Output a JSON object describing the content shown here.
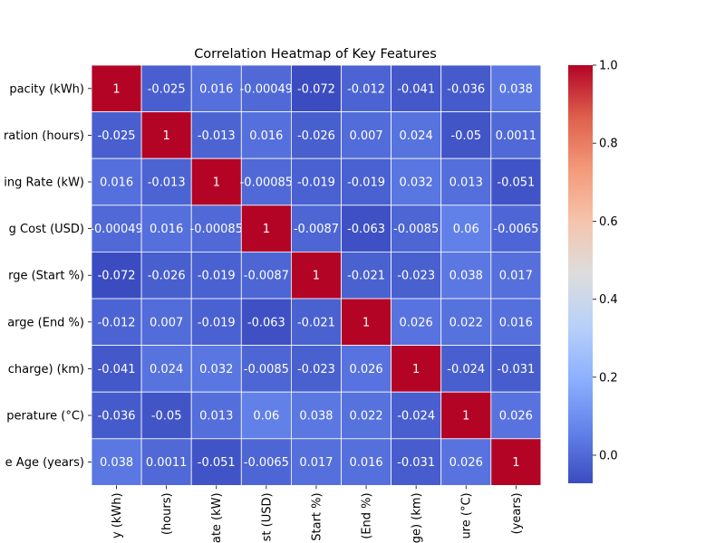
{
  "chart_data": {
    "type": "heatmap",
    "title": "Correlation Heatmap of Key Features",
    "row_labels": [
      "pacity (kWh)",
      "ration (hours)",
      "ing Rate (kW)",
      "g Cost (USD)",
      "rge (Start %)",
      "arge (End %)",
      "charge) (km)",
      "perature (°C)",
      "e Age (years)"
    ],
    "column_labels": [
      "y (kWh)",
      "(hours)",
      "ate (kW)",
      "st (USD)",
      "Start %)",
      "(End %)",
      "ge) (km)",
      "ure (°C)",
      "(years)"
    ],
    "cell_labels": [
      [
        "1",
        "-0.025",
        "0.016",
        "-0.00049",
        "-0.072",
        "-0.012",
        "-0.041",
        "-0.036",
        "0.038"
      ],
      [
        "-0.025",
        "1",
        "-0.013",
        "0.016",
        "-0.026",
        "0.007",
        "0.024",
        "-0.05",
        "0.0011"
      ],
      [
        "0.016",
        "-0.013",
        "1",
        "-0.00085",
        "-0.019",
        "-0.019",
        "0.032",
        "0.013",
        "-0.051"
      ],
      [
        "-0.00049",
        "0.016",
        "-0.00085",
        "1",
        "-0.0087",
        "-0.063",
        "-0.0085",
        "0.06",
        "-0.0065"
      ],
      [
        "-0.072",
        "-0.026",
        "-0.019",
        "-0.0087",
        "1",
        "-0.021",
        "-0.023",
        "0.038",
        "0.017"
      ],
      [
        "-0.012",
        "0.007",
        "-0.019",
        "-0.063",
        "-0.021",
        "1",
        "0.026",
        "0.022",
        "0.016"
      ],
      [
        "-0.041",
        "0.024",
        "0.032",
        "-0.0085",
        "-0.023",
        "0.026",
        "1",
        "-0.024",
        "-0.031"
      ],
      [
        "-0.036",
        "-0.05",
        "0.013",
        "0.06",
        "0.038",
        "0.022",
        "-0.024",
        "1",
        "0.026"
      ],
      [
        "0.038",
        "0.0011",
        "-0.051",
        "-0.0065",
        "0.017",
        "0.016",
        "-0.031",
        "0.026",
        "1"
      ]
    ],
    "colorbar": {
      "colormap": "coolwarm",
      "range": [
        -0.072,
        1.0
      ],
      "tick_labels": [
        "0.0",
        "0.2",
        "0.4",
        "0.6",
        "0.8",
        "1.0"
      ],
      "tick_values": [
        0.0,
        0.2,
        0.4,
        0.6,
        0.8,
        1.0
      ]
    },
    "grid_line_color": "#ffffff",
    "annotation_color": "#ffffff"
  }
}
